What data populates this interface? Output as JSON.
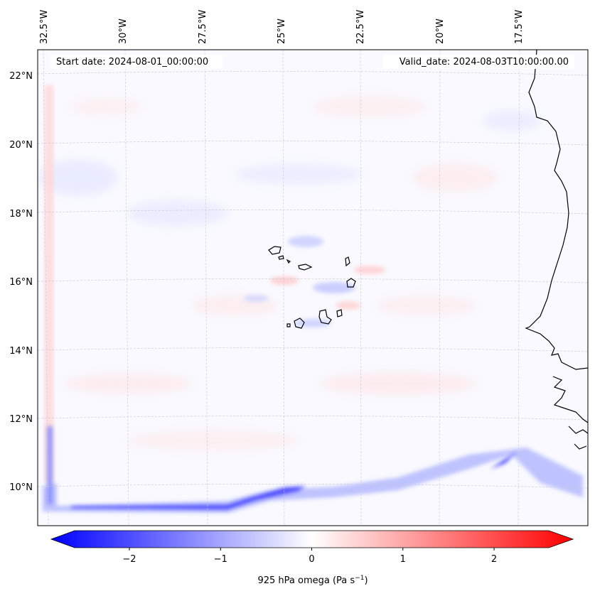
{
  "map": {
    "start_date": "Start date: 2024-08-01_00:00:00",
    "valid_date": "Valid_date: 2024-08-03T10:00:00.00",
    "lon_labels": [
      "32.5°W",
      "30°W",
      "27.5°W",
      "25°W",
      "22.5°W",
      "20°W",
      "17.5°W"
    ],
    "lat_labels": [
      "22°N",
      "20°N",
      "18°N",
      "16°N",
      "14°N",
      "12°N",
      "10°N"
    ],
    "colorbar": {
      "label": "925 hPa omega (Pa s",
      "label_sup": "−1",
      "label_close": ")",
      "ticks": [
        "−2",
        "−1",
        "0",
        "1",
        "2"
      ],
      "tick_values": [
        -2,
        -1,
        0,
        1,
        2
      ],
      "min": -2.6,
      "max": 2.6,
      "colors": {
        "low": "#0000ff",
        "mid": "#ffffff",
        "high": "#ff0000"
      }
    },
    "colors": {
      "coast": "#000000",
      "grid": "#c8c8c8"
    }
  }
}
